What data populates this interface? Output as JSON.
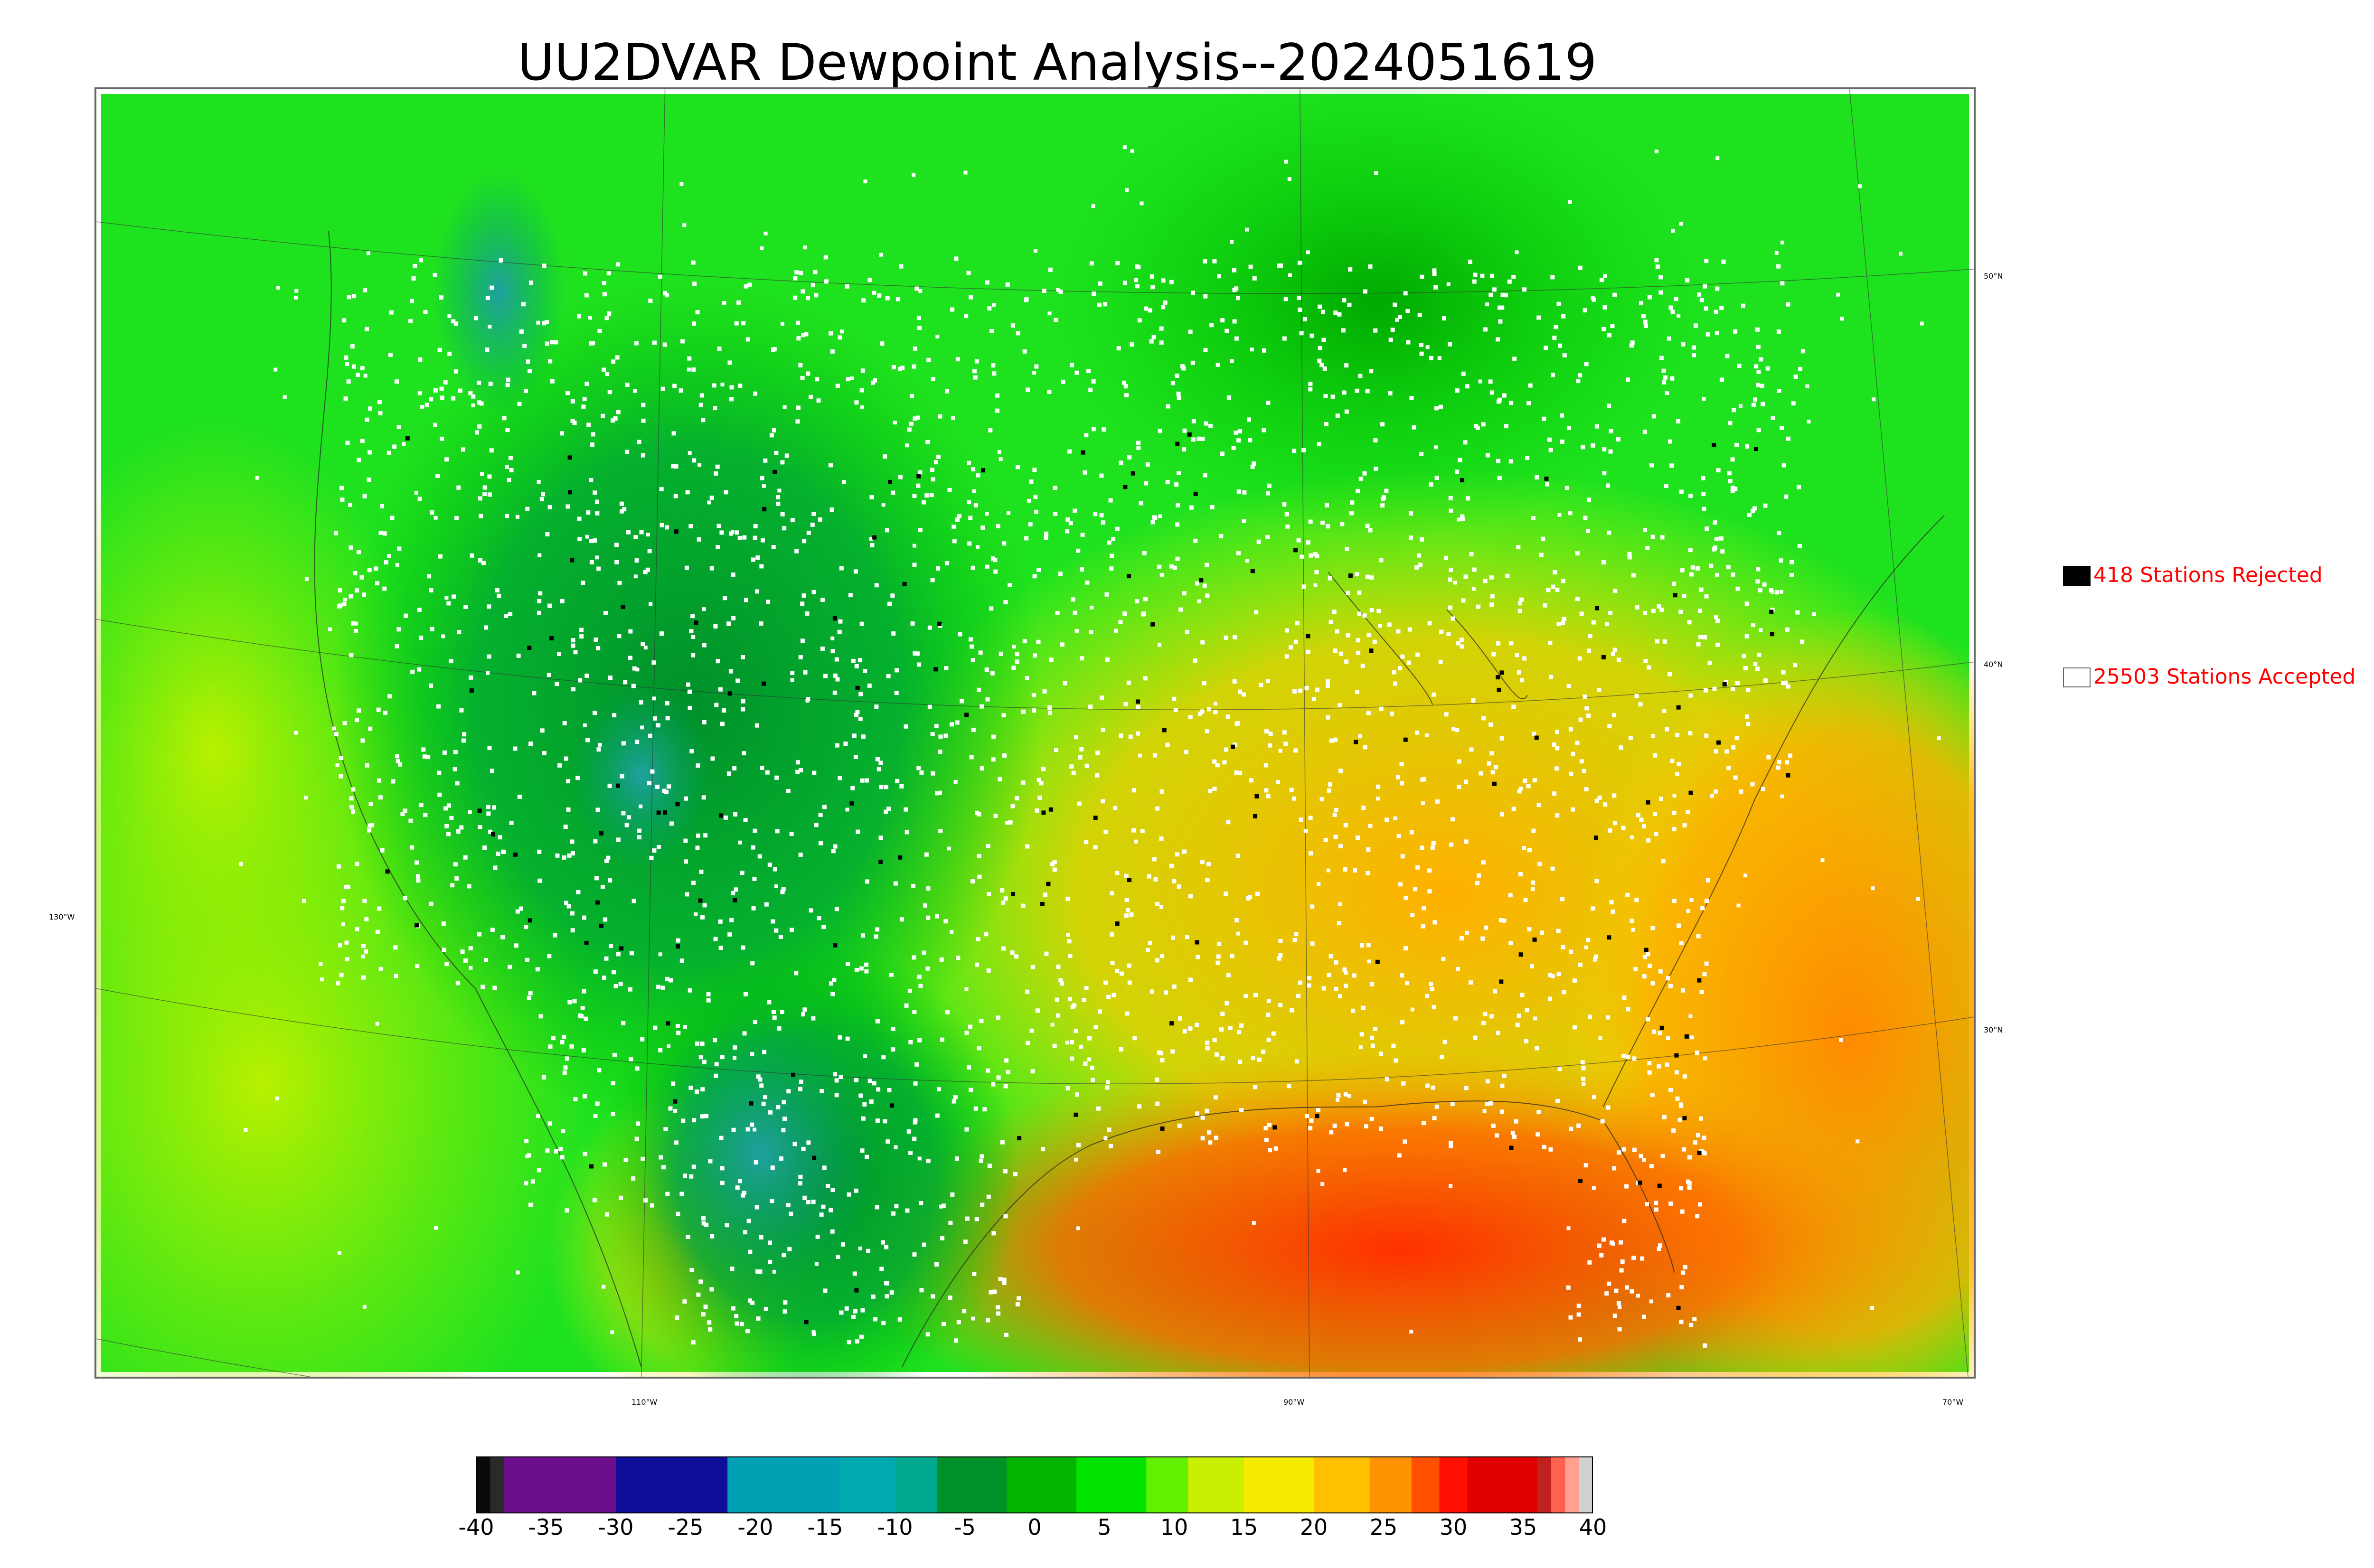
{
  "title": "UU2DVAR Dewpoint Analysis--2024051619",
  "legend": {
    "rejected": {
      "label": "418 Stations Rejected",
      "color": "#000000"
    },
    "accepted": {
      "label": "25503 Stations Accepted",
      "color": "#ffffff"
    }
  },
  "map": {
    "latitude_labels": [
      "50°N",
      "40°N",
      "30°N"
    ],
    "longitude_labels": [
      "130°W",
      "110°W",
      "90°W",
      "70°W"
    ]
  },
  "colorbar": {
    "ticks": [
      "-40",
      "-35",
      "-30",
      "-25",
      "-20",
      "-15",
      "-10",
      "-5",
      "0",
      "5",
      "10",
      "15",
      "20",
      "25",
      "30",
      "35",
      "40"
    ],
    "range": [
      -40,
      40
    ],
    "segments": [
      {
        "from": -40,
        "to": -39,
        "color": "#0a0a0a"
      },
      {
        "from": -39,
        "to": -38,
        "color": "#2a2a2a"
      },
      {
        "from": -38,
        "to": -30,
        "color": "#6c0e8c"
      },
      {
        "from": -30,
        "to": -22,
        "color": "#0e0e9a"
      },
      {
        "from": -22,
        "to": -14,
        "color": "#00a0b4"
      },
      {
        "from": -14,
        "to": -10,
        "color": "#00a8b0"
      },
      {
        "from": -10,
        "to": -7,
        "color": "#00a890"
      },
      {
        "from": -7,
        "to": -2,
        "color": "#00902a"
      },
      {
        "from": -2,
        "to": 3,
        "color": "#00b400"
      },
      {
        "from": 3,
        "to": 8,
        "color": "#00e400"
      },
      {
        "from": 8,
        "to": 11,
        "color": "#60f000"
      },
      {
        "from": 11,
        "to": 15,
        "color": "#c8f000"
      },
      {
        "from": 15,
        "to": 20,
        "color": "#f6ea00"
      },
      {
        "from": 20,
        "to": 24,
        "color": "#ffc000"
      },
      {
        "from": 24,
        "to": 27,
        "color": "#ff9400"
      },
      {
        "from": 27,
        "to": 29,
        "color": "#ff5000"
      },
      {
        "from": 29,
        "to": 31,
        "color": "#ff1000"
      },
      {
        "from": 31,
        "to": 36,
        "color": "#e00000"
      },
      {
        "from": 36,
        "to": 37,
        "color": "#c02020"
      },
      {
        "from": 37,
        "to": 38,
        "color": "#ff6050"
      },
      {
        "from": 38,
        "to": 39,
        "color": "#ffa090"
      },
      {
        "from": 39,
        "to": 40,
        "color": "#d0d0d0"
      }
    ]
  }
}
